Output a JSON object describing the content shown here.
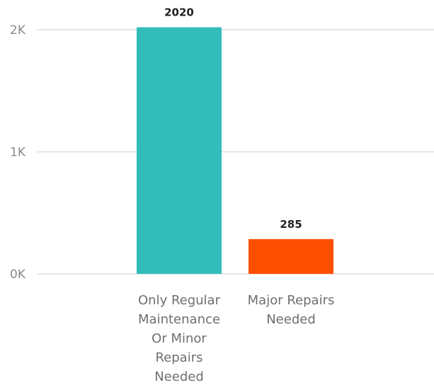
{
  "chart_data": {
    "type": "bar",
    "categories": [
      [
        "Only Regular",
        "Maintenance",
        "Or Minor",
        "Repairs",
        "Needed"
      ],
      [
        "Major Repairs",
        "Needed"
      ]
    ],
    "values": [
      2020,
      285
    ],
    "data_labels": [
      "2020",
      "285"
    ],
    "colors": [
      "#33BDBA",
      "#FF4F00"
    ],
    "y_ticks": [
      {
        "value": 0,
        "label": "0K"
      },
      {
        "value": 1000,
        "label": "1K"
      },
      {
        "value": 2000,
        "label": "2K"
      }
    ],
    "ylim": [
      0,
      2000
    ],
    "grid": true,
    "title": "",
    "xlabel": "",
    "ylabel": ""
  }
}
